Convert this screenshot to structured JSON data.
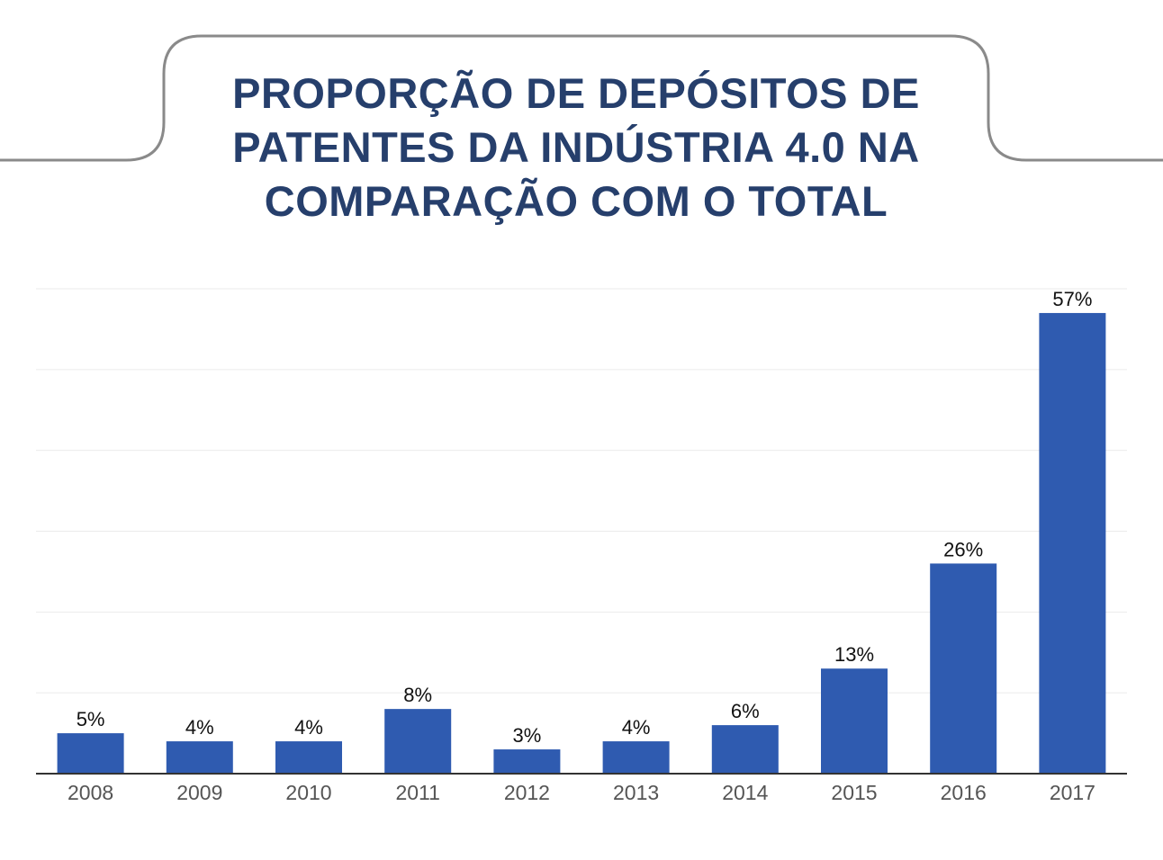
{
  "title_lines": [
    "PROPORÇÃO DE DEPÓSITOS DE",
    "PATENTES DA INDÚSTRIA 4.0 NA",
    "COMPARAÇÃO COM O TOTAL"
  ],
  "colors": {
    "title": "#263f6c",
    "bar": "#2f5bb0",
    "frame": "#8a8a8a",
    "grid": "#ebebeb",
    "axis": "#333333",
    "tick_label": "#555555",
    "data_label": "#111111"
  },
  "chart_data": {
    "type": "bar",
    "title": "PROPORÇÃO DE DEPÓSITOS DE PATENTES DA INDÚSTRIA 4.0 NA COMPARAÇÃO COM O TOTAL",
    "categories": [
      "2008",
      "2009",
      "2010",
      "2011",
      "2012",
      "2013",
      "2014",
      "2015",
      "2016",
      "2017"
    ],
    "values": [
      5,
      4,
      4,
      8,
      3,
      4,
      6,
      13,
      26,
      57
    ],
    "value_labels": [
      "5%",
      "4%",
      "4%",
      "8%",
      "3%",
      "4%",
      "6%",
      "13%",
      "26%",
      "57%"
    ],
    "value_unit": "%",
    "xlabel": "",
    "ylabel": "",
    "ylim": [
      0,
      60
    ],
    "y_gridlines": [
      0,
      10,
      20,
      30,
      40,
      50,
      60
    ],
    "grid": true,
    "y_tick_labels_shown": false,
    "legend": "none"
  }
}
